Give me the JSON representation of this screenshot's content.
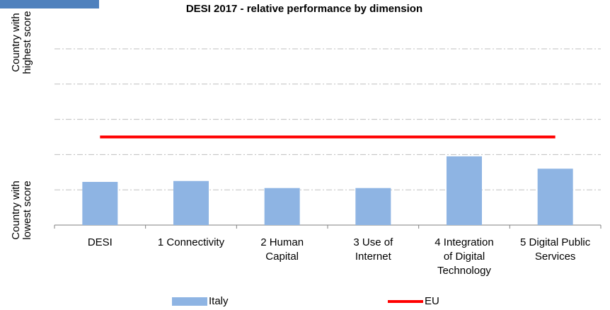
{
  "chart_data": {
    "type": "bar",
    "title": "DESI 2017 - relative performance by dimension",
    "y_label_top": "Country with\nhighest score",
    "y_label_bottom": "Country with\nlowest score",
    "categories": [
      "DESI",
      "1 Connectivity",
      "2 Human\nCapital",
      "3 Use of\nInternet",
      "4 Integration\nof Digital\nTechnology",
      "5 Digital Public\nServices"
    ],
    "series": [
      {
        "name": "Italy",
        "type": "bar",
        "color": "#8eb4e3",
        "values": [
          0.245,
          0.25,
          0.21,
          0.21,
          0.39,
          0.32
        ]
      },
      {
        "name": "EU",
        "type": "line",
        "color": "#ff0000",
        "values": [
          0.5,
          0.5,
          0.5,
          0.5,
          0.5,
          0.5
        ]
      }
    ],
    "ylim": [
      0,
      1
    ],
    "yticks": [
      0,
      0.2,
      0.4,
      0.6,
      0.8,
      1
    ],
    "grid": true
  }
}
